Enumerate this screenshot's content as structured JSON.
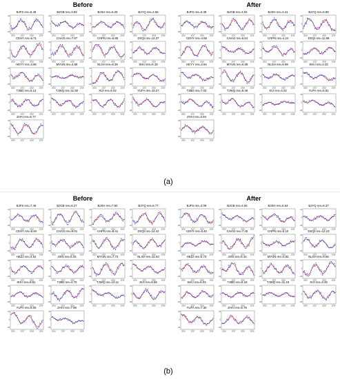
{
  "colors": {
    "observed": "#1f2fd6",
    "model": "#e01010",
    "axis": "#444444"
  },
  "figure_a": {
    "caption": "(a)",
    "before_title": "Before",
    "after_title": "After"
  },
  "figure_b": {
    "caption": "(b)",
    "before_title": "Before",
    "after_title": "After"
  },
  "chart_data": [
    {
      "type": "line",
      "figure": "a",
      "group": "Before",
      "x_ticks": [
        "2016",
        "2017",
        "2018",
        "2019"
      ],
      "panels": [
        {
          "station": "BJFS",
          "label": "BJFS res=6.48"
        },
        {
          "station": "BJGB",
          "label": "BJGB res=3.59"
        },
        {
          "station": "BJSH",
          "label": "BJSH res=5.25"
        },
        {
          "station": "BJYQ",
          "label": "BJYQ res=4.56"
        },
        {
          "station": "CEHY",
          "label": "CEHY res=6.71"
        },
        {
          "station": "CHAO",
          "label": "CHAO res=7.87"
        },
        {
          "station": "CHPN",
          "label": "CHPN res=6.85"
        },
        {
          "station": "DSQI",
          "label": "DSQI res=14.37"
        },
        {
          "station": "HEYY",
          "label": "HEYY res=3.96"
        },
        {
          "station": "MYUN",
          "label": "MYUN res=4.68"
        },
        {
          "station": "NLSH",
          "label": "NLSH res=8.39"
        },
        {
          "station": "SHIJ",
          "label": "SHIJ res=6.18"
        },
        {
          "station": "TJBD",
          "label": "TJBD res=5.14"
        },
        {
          "station": "TJWQ",
          "label": "TJWQ res=11.92"
        },
        {
          "station": "XIJI",
          "label": "XIJI res=6.02"
        },
        {
          "station": "YUFA",
          "label": "YUFA res=10.27"
        },
        {
          "station": "ZHAI",
          "label": "ZHAI res=6.77"
        }
      ]
    },
    {
      "type": "line",
      "figure": "a",
      "group": "After",
      "x_ticks": [
        "2016",
        "2017",
        "2018",
        "2019"
      ],
      "panels": [
        {
          "station": "BJFS",
          "label": "BJFS res=3.38"
        },
        {
          "station": "BJGB",
          "label": "BJGB res=4.94"
        },
        {
          "station": "BJSH",
          "label": "BJSH res=3.41"
        },
        {
          "station": "BJYQ",
          "label": "BJYQ res=5.99"
        },
        {
          "station": "CEHY",
          "label": "CEHY res=4.68"
        },
        {
          "station": "CHAO",
          "label": "CHAO res=6.54"
        },
        {
          "station": "CHPN",
          "label": "CHPN res=4.24"
        },
        {
          "station": "DSQI",
          "label": "DSQI res=11.89"
        },
        {
          "station": "HEYY",
          "label": "HEYY res=2.94"
        },
        {
          "station": "MYUN",
          "label": "MYUN res=5.08"
        },
        {
          "station": "NLSH",
          "label": "NLSH res=6.99"
        },
        {
          "station": "SHIJ",
          "label": "SHIJ res=3.33"
        },
        {
          "station": "TJBD",
          "label": "TJBD res=7.03"
        },
        {
          "station": "TJWQ",
          "label": "TJWQ res=9.46"
        },
        {
          "station": "XIJI",
          "label": "XIJI res=4.02"
        },
        {
          "station": "YUFA",
          "label": "YUFA res=6.81"
        },
        {
          "station": "ZHAI",
          "label": "ZHAI res=3.94"
        }
      ]
    },
    {
      "type": "line",
      "figure": "b",
      "group": "Before",
      "x_ticks": [
        "2016",
        "2017",
        "2018",
        "2019"
      ],
      "panels": [
        {
          "station": "BJFS",
          "label": "BJFS res=7.45"
        },
        {
          "station": "BJGB",
          "label": "BJGB res=6.27"
        },
        {
          "station": "BJSH",
          "label": "BJSH res=7.94"
        },
        {
          "station": "BJYQ",
          "label": "BJYQ res=6.77"
        },
        {
          "station": "CEHY",
          "label": "CEHY res=8.49"
        },
        {
          "station": "CHAO",
          "label": "CHAO res=9.01"
        },
        {
          "station": "CHPN",
          "label": "CHPN res=8.41"
        },
        {
          "station": "DSQI",
          "label": "DSQI res=14.42"
        },
        {
          "station": "HEZJ",
          "label": "HEZJ res=4.52"
        },
        {
          "station": "JIXN",
          "label": "JIXN res=6.34"
        },
        {
          "station": "MYUN",
          "label": "MYUN res=7.72"
        },
        {
          "station": "NLSH",
          "label": "NLSH res=11.83"
        },
        {
          "station": "SHIJ",
          "label": "SHIJ res=8.51"
        },
        {
          "station": "TJBD",
          "label": "TJBD res=4.70"
        },
        {
          "station": "TJWQ",
          "label": "TJWQ res=13.11"
        },
        {
          "station": "XIJI",
          "label": "XIJI res=6.56"
        },
        {
          "station": "YUFA",
          "label": "YUFA res=8.05"
        },
        {
          "station": "ZHAI",
          "label": "ZHAI res=7.98"
        }
      ]
    },
    {
      "type": "line",
      "figure": "b",
      "group": "After",
      "x_ticks": [
        "2016",
        "2017",
        "2018",
        "2019"
      ],
      "panels": [
        {
          "station": "BJFS",
          "label": "BJFS res=4.09"
        },
        {
          "station": "BJGB",
          "label": "BJGB res=4.06"
        },
        {
          "station": "BJSH",
          "label": "BJSH res=5.64"
        },
        {
          "station": "BJYQ",
          "label": "BJYQ res=6.27"
        },
        {
          "station": "CEHY",
          "label": "CEHY res=5.40"
        },
        {
          "station": "CHAO",
          "label": "CHAO res=7.45"
        },
        {
          "station": "CHPN",
          "label": "CHPN res=5.10"
        },
        {
          "station": "DSQI",
          "label": "DSQI res=12.23"
        },
        {
          "station": "HEZJ",
          "label": "HEZJ res=5.73"
        },
        {
          "station": "JIXN",
          "label": "JIXN res=5.44"
        },
        {
          "station": "MYUN",
          "label": "MYUN res=4.82"
        },
        {
          "station": "NLSH",
          "label": "NLSH res=9.66"
        },
        {
          "station": "SHIJ",
          "label": "SHIJ res=6.03"
        },
        {
          "station": "TJBD",
          "label": "TJBD res=5.18"
        },
        {
          "station": "TJWQ",
          "label": "TJWQ res=11.19"
        },
        {
          "station": "XIJI",
          "label": "XIJI res=3.49"
        },
        {
          "station": "YUFA",
          "label": "YUFA res=7.30"
        },
        {
          "station": "ZHAI",
          "label": "ZHAI res=5.76"
        }
      ]
    }
  ]
}
